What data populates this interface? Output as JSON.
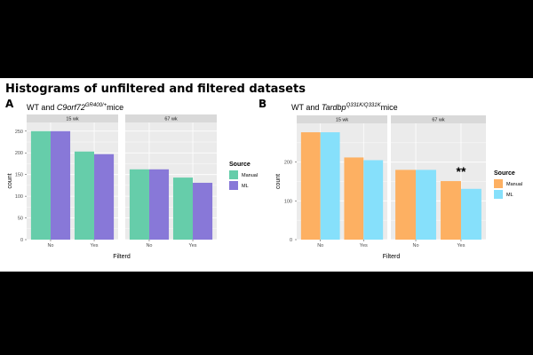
{
  "figure_title": "Histograms of unfiltered and filtered datasets",
  "chart_data": [
    {
      "type": "bar",
      "panel_label": "A",
      "title_prefix": "WT and ",
      "title_gene": "C9orf72",
      "title_superscript": "GR400/+",
      "title_suffix": "mice",
      "facets": [
        "15 wk",
        "67 wk"
      ],
      "categories": [
        "No",
        "Yes"
      ],
      "xlabel": "Filterd",
      "ylabel": "count",
      "ylim": [
        0,
        270
      ],
      "yticks": [
        0,
        50,
        100,
        150,
        200,
        250
      ],
      "legend_title": "Source",
      "legend_position": "right",
      "series": [
        {
          "name": "Manual",
          "color": "#66cdaa",
          "values": {
            "15 wk": [
              250,
              203
            ],
            "67 wk": [
              162,
              143
            ]
          }
        },
        {
          "name": "ML",
          "color": "#8878d8",
          "values": {
            "15 wk": [
              250,
              197
            ],
            "67 wk": [
              162,
              131
            ]
          }
        }
      ],
      "annotation": ""
    },
    {
      "type": "bar",
      "panel_label": "B",
      "title_prefix": "WT and ",
      "title_gene": "Tardbp",
      "title_superscript": "Q331K/Q331K",
      "title_suffix": "mice",
      "facets": [
        "15 wk",
        "67 wk"
      ],
      "categories": [
        "No",
        "Yes"
      ],
      "xlabel": "Filterd",
      "ylabel": "count",
      "ylim": [
        0,
        300
      ],
      "yticks": [
        0,
        100,
        200
      ],
      "legend_title": "Source",
      "legend_position": "right",
      "series": [
        {
          "name": "Manual",
          "color": "#fdb062",
          "values": {
            "15 wk": [
              277,
              212
            ],
            "67 wk": [
              180,
              151
            ]
          }
        },
        {
          "name": "ML",
          "color": "#86e0fb",
          "values": {
            "15 wk": [
              277,
              205
            ],
            "67 wk": [
              180,
              131
            ]
          }
        }
      ],
      "annotation": "**"
    }
  ]
}
